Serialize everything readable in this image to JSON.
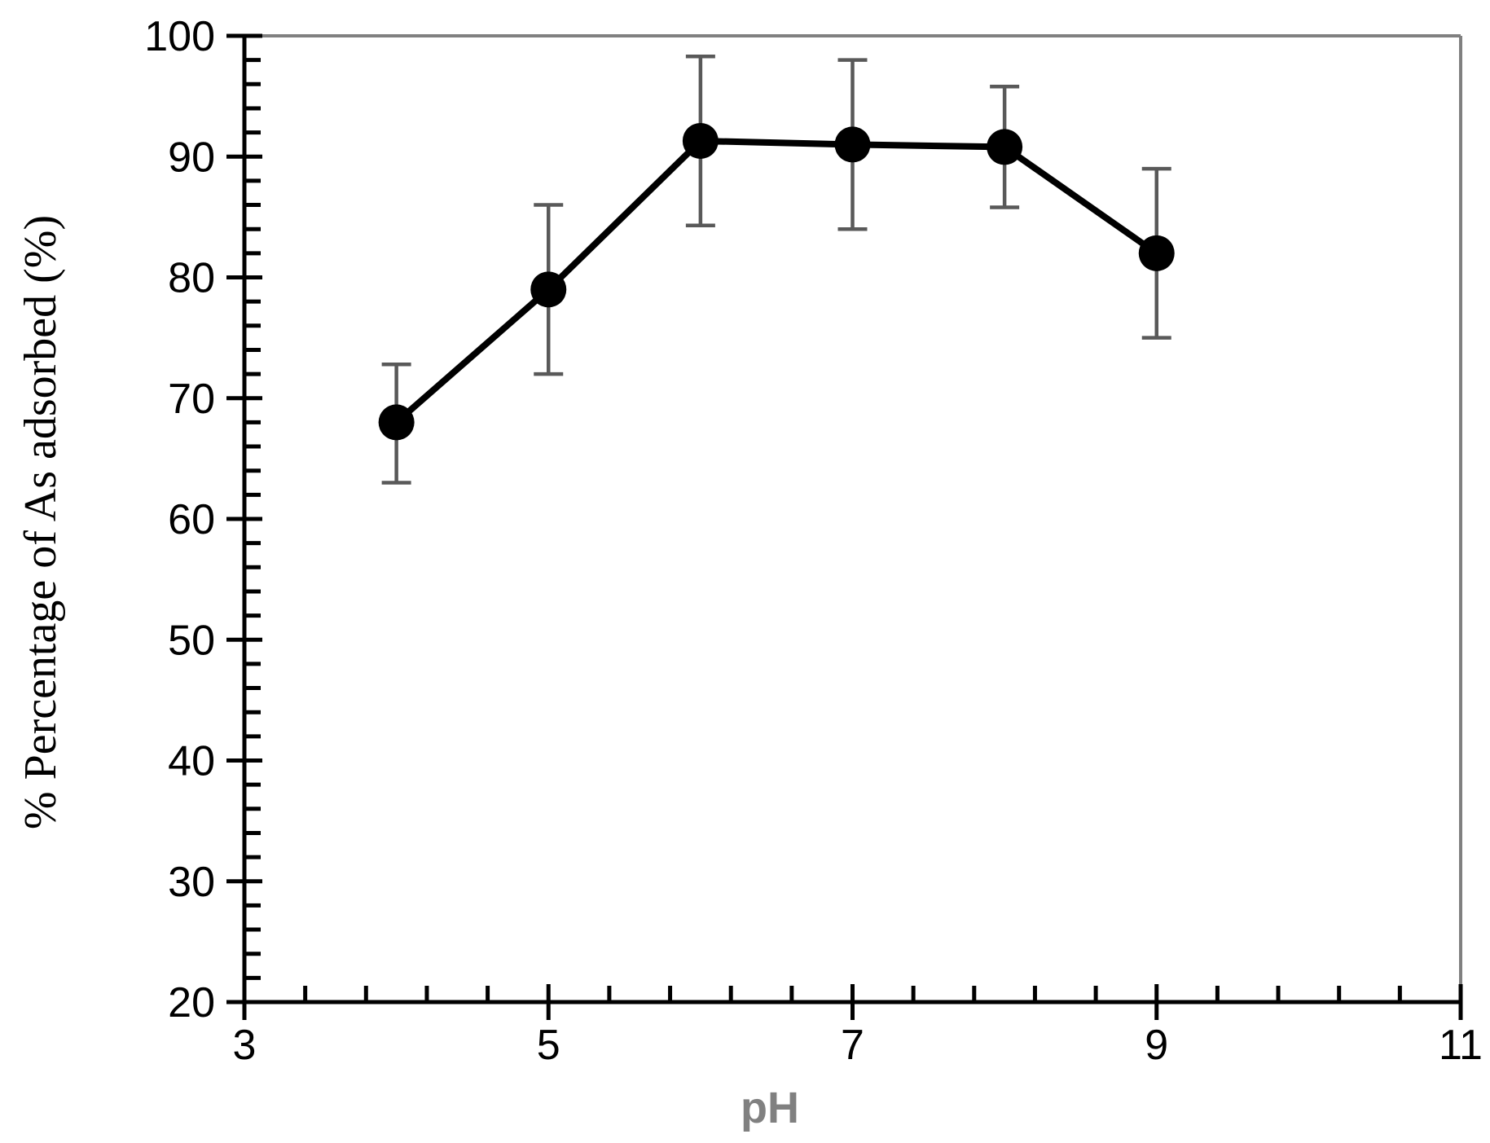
{
  "chart_data": {
    "type": "line",
    "title": "",
    "xlabel": "pH",
    "ylabel": "% Percentage of As adsorbed (%)",
    "xlim": [
      3,
      11
    ],
    "ylim": [
      20,
      100
    ],
    "x_ticks": [
      3,
      5,
      7,
      9,
      11
    ],
    "x_tick_labels": [
      "3",
      "5",
      "7",
      "9",
      "11"
    ],
    "x_minor_step": 0.4,
    "y_ticks": [
      20,
      30,
      40,
      50,
      60,
      70,
      80,
      90,
      100
    ],
    "y_tick_labels": [
      "20",
      "30",
      "40",
      "50",
      "60",
      "70",
      "80",
      "90",
      "100"
    ],
    "y_minor_step": 2,
    "grid": false,
    "legend": "none",
    "series": [
      {
        "x": [
          4,
          5,
          6,
          7,
          8,
          9
        ],
        "y": [
          68,
          79,
          91.3,
          91,
          90.8,
          82
        ],
        "error_low": [
          63,
          72,
          84.3,
          84,
          85.8,
          75
        ],
        "error_high": [
          72.8,
          86,
          98.3,
          98,
          95.8,
          89
        ]
      }
    ],
    "colors": {
      "line": "#000000",
      "marker": "#000000",
      "error_bar": "#595959",
      "frame": "#808080",
      "axis": "#000000",
      "xlabel": "#808080"
    }
  }
}
